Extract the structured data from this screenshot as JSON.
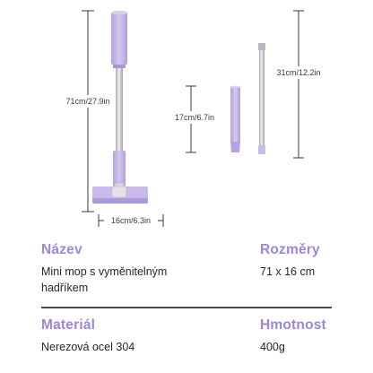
{
  "dimensions": {
    "full_height": "71cm/27.9in",
    "head_width": "16cm/6.3in",
    "handle_section": "17cm/6.7in",
    "pole_section": "31cm/12.2in"
  },
  "colors": {
    "lavender": "#c7b8e8",
    "heading": "#9b87d6",
    "steel": "#c9c9cf"
  },
  "specs": {
    "name_label": "Název",
    "name_value": "Mini mop s vyměnitelným hadříkem",
    "dimensions_label": "Rozměry",
    "dimensions_value": "71 x 16 cm",
    "material_label": "Materiál",
    "material_value": "Nerezová ocel 304",
    "weight_label": "Hmotnost",
    "weight_value": "400g"
  }
}
